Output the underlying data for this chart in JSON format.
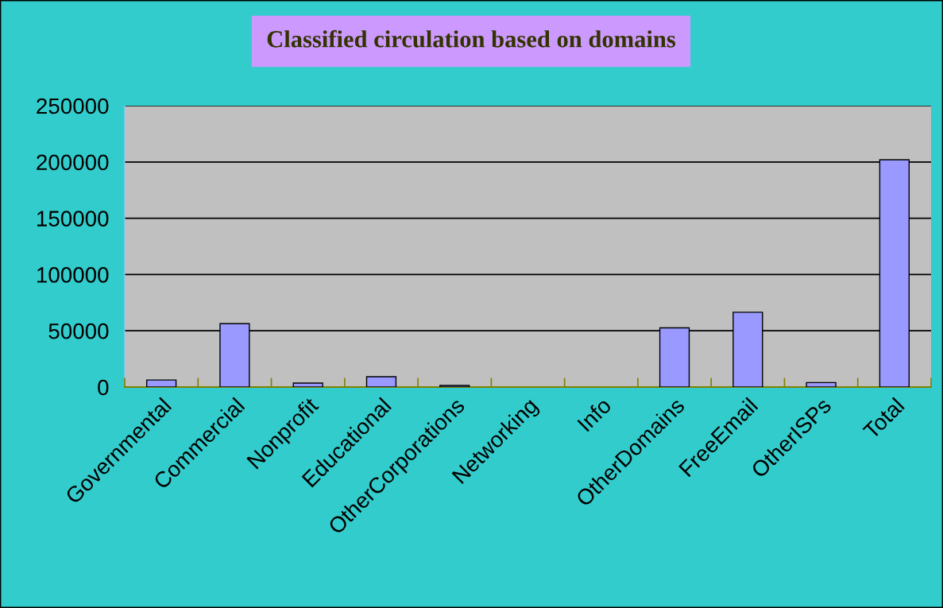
{
  "chart_data": {
    "type": "bar",
    "title": "Classified circulation based on domains",
    "categories": [
      "Governmental",
      "Commercial",
      "Nonprofit",
      "Educational",
      "OtherCorporations",
      "Networking",
      "Info",
      "OtherDomains",
      "FreeEmail",
      "OtherISPs",
      "Total"
    ],
    "values": [
      6300,
      56300,
      3500,
      9200,
      1400,
      0,
      0,
      52600,
      66500,
      4000,
      202000
    ],
    "color": "#9999ff",
    "ylim": [
      0,
      250000
    ],
    "yticks": [
      0,
      50000,
      100000,
      150000,
      200000,
      250000
    ],
    "grid": "y"
  }
}
